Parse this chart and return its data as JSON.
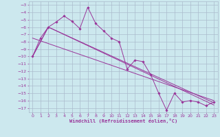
{
  "xlabel": "Windchill (Refroidissement éolien,°C)",
  "bg_color": "#cce8ee",
  "grid_color": "#aabbcc",
  "line_color": "#993399",
  "xlim": [
    -0.5,
    23.5
  ],
  "ylim": [
    -17.6,
    -2.5
  ],
  "yticks": [
    -3,
    -4,
    -5,
    -6,
    -7,
    -8,
    -9,
    -10,
    -11,
    -12,
    -13,
    -14,
    -15,
    -16,
    -17
  ],
  "xticks": [
    0,
    1,
    2,
    3,
    4,
    5,
    6,
    7,
    8,
    9,
    10,
    11,
    12,
    13,
    14,
    15,
    16,
    17,
    18,
    19,
    20,
    21,
    22,
    23
  ],
  "series1_x": [
    0,
    1,
    2,
    3,
    4,
    5,
    6,
    7,
    8,
    9,
    10,
    11,
    12,
    13,
    14,
    15,
    16,
    17,
    18,
    19,
    20,
    21,
    22,
    23
  ],
  "series1_y": [
    -10,
    -7.5,
    -6.0,
    -5.3,
    -4.5,
    -5.2,
    -6.2,
    -3.3,
    -5.5,
    -6.5,
    -7.5,
    -8.0,
    -11.7,
    -10.5,
    -10.7,
    -12.5,
    -15.0,
    -17.3,
    -15.0,
    -16.2,
    -16.0,
    -16.2,
    -16.7,
    -16.2
  ],
  "trend1_x": [
    0,
    2,
    23
  ],
  "trend1_y": [
    -10,
    -6.0,
    -16.3
  ],
  "trend2_x": [
    0,
    2,
    23
  ],
  "trend2_y": [
    -10,
    -6.0,
    -16.6
  ],
  "trend3_x": [
    0,
    23
  ],
  "trend3_y": [
    -7.5,
    -16.0
  ]
}
